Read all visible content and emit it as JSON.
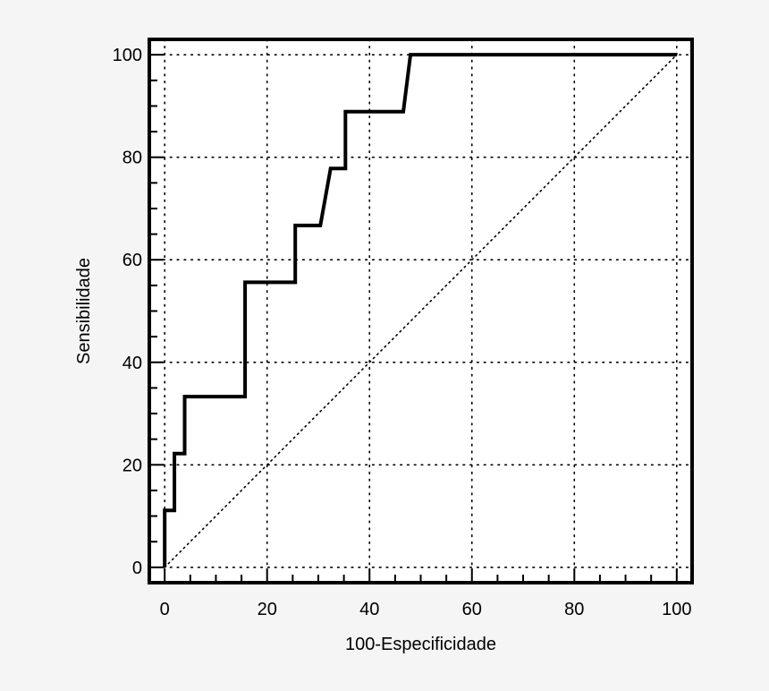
{
  "chart_data": {
    "type": "line",
    "title": "",
    "xlabel": "100-Especificidade",
    "ylabel": "Sensibilidade",
    "xlim": [
      -3,
      103
    ],
    "ylim": [
      -3,
      103
    ],
    "xticks": [
      0,
      20,
      40,
      60,
      80,
      100
    ],
    "yticks": [
      0,
      20,
      40,
      60,
      80,
      100
    ],
    "xtick_labels": [
      "0",
      "20",
      "40",
      "60",
      "80",
      "100"
    ],
    "ytick_labels": [
      "0",
      "20",
      "40",
      "60",
      "80",
      "100"
    ],
    "grid": true,
    "grid_style": "dotted",
    "series": [
      {
        "style": "solid-thick",
        "x": [
          0,
          0,
          1.9,
          1.9,
          3.9,
          3.9,
          15.7,
          15.7,
          25.5,
          25.5,
          30.4,
          32.4,
          32.4,
          35.3,
          35.3,
          46.6,
          48,
          100
        ],
        "y": [
          0,
          11.1,
          11.1,
          22.2,
          22.2,
          33.3,
          33.3,
          55.6,
          55.6,
          66.7,
          66.7,
          77.8,
          77.8,
          77.8,
          88.9,
          88.9,
          100,
          100
        ]
      },
      {
        "style": "dotted-reference",
        "x": [
          0,
          100
        ],
        "y": [
          0,
          100
        ]
      }
    ],
    "colors": {
      "background": "#f5f5f5",
      "plot_area": "#ffffff",
      "line": "#000000",
      "grid": "#000000"
    }
  }
}
